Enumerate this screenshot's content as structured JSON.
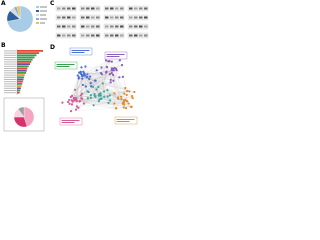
{
  "panels": {
    "a": {
      "label": "A",
      "type": "pie",
      "values": [
        72,
        14,
        6,
        4,
        4
      ],
      "colors": [
        "#a8cbe6",
        "#2e5f9e",
        "#d9d9d9",
        "#7fb2d9",
        "#f2c14e"
      ]
    },
    "b": {
      "label": "B",
      "type": "bar",
      "values": [
        40,
        34,
        30,
        27,
        24,
        22,
        20,
        18,
        16,
        15,
        14,
        12,
        11,
        10,
        9,
        8,
        7,
        6,
        5,
        4
      ],
      "colors": [
        "#e34a33",
        "#e34a33",
        "#3a9e4f",
        "#3a9e4f",
        "#3a9e4f",
        "#e34a33",
        "#6a51a3",
        "#3a9e4f",
        "#e34a33",
        "#6a51a3",
        "#3a9e4f",
        "#fd8d3c",
        "#3a9e4f",
        "#6a51a3",
        "#e34a33",
        "#3a9e4f",
        "#fd8d3c",
        "#6a51a3",
        "#3a9e4f",
        "#e34a33"
      ]
    },
    "inset": {
      "type": "pie",
      "values": [
        45,
        30,
        15,
        10
      ],
      "colors": [
        "#f4a6c0",
        "#d6336c",
        "#f7d3df",
        "#9e9e9e"
      ]
    },
    "c": {
      "label": "C"
    },
    "d": {
      "label": "D"
    }
  }
}
